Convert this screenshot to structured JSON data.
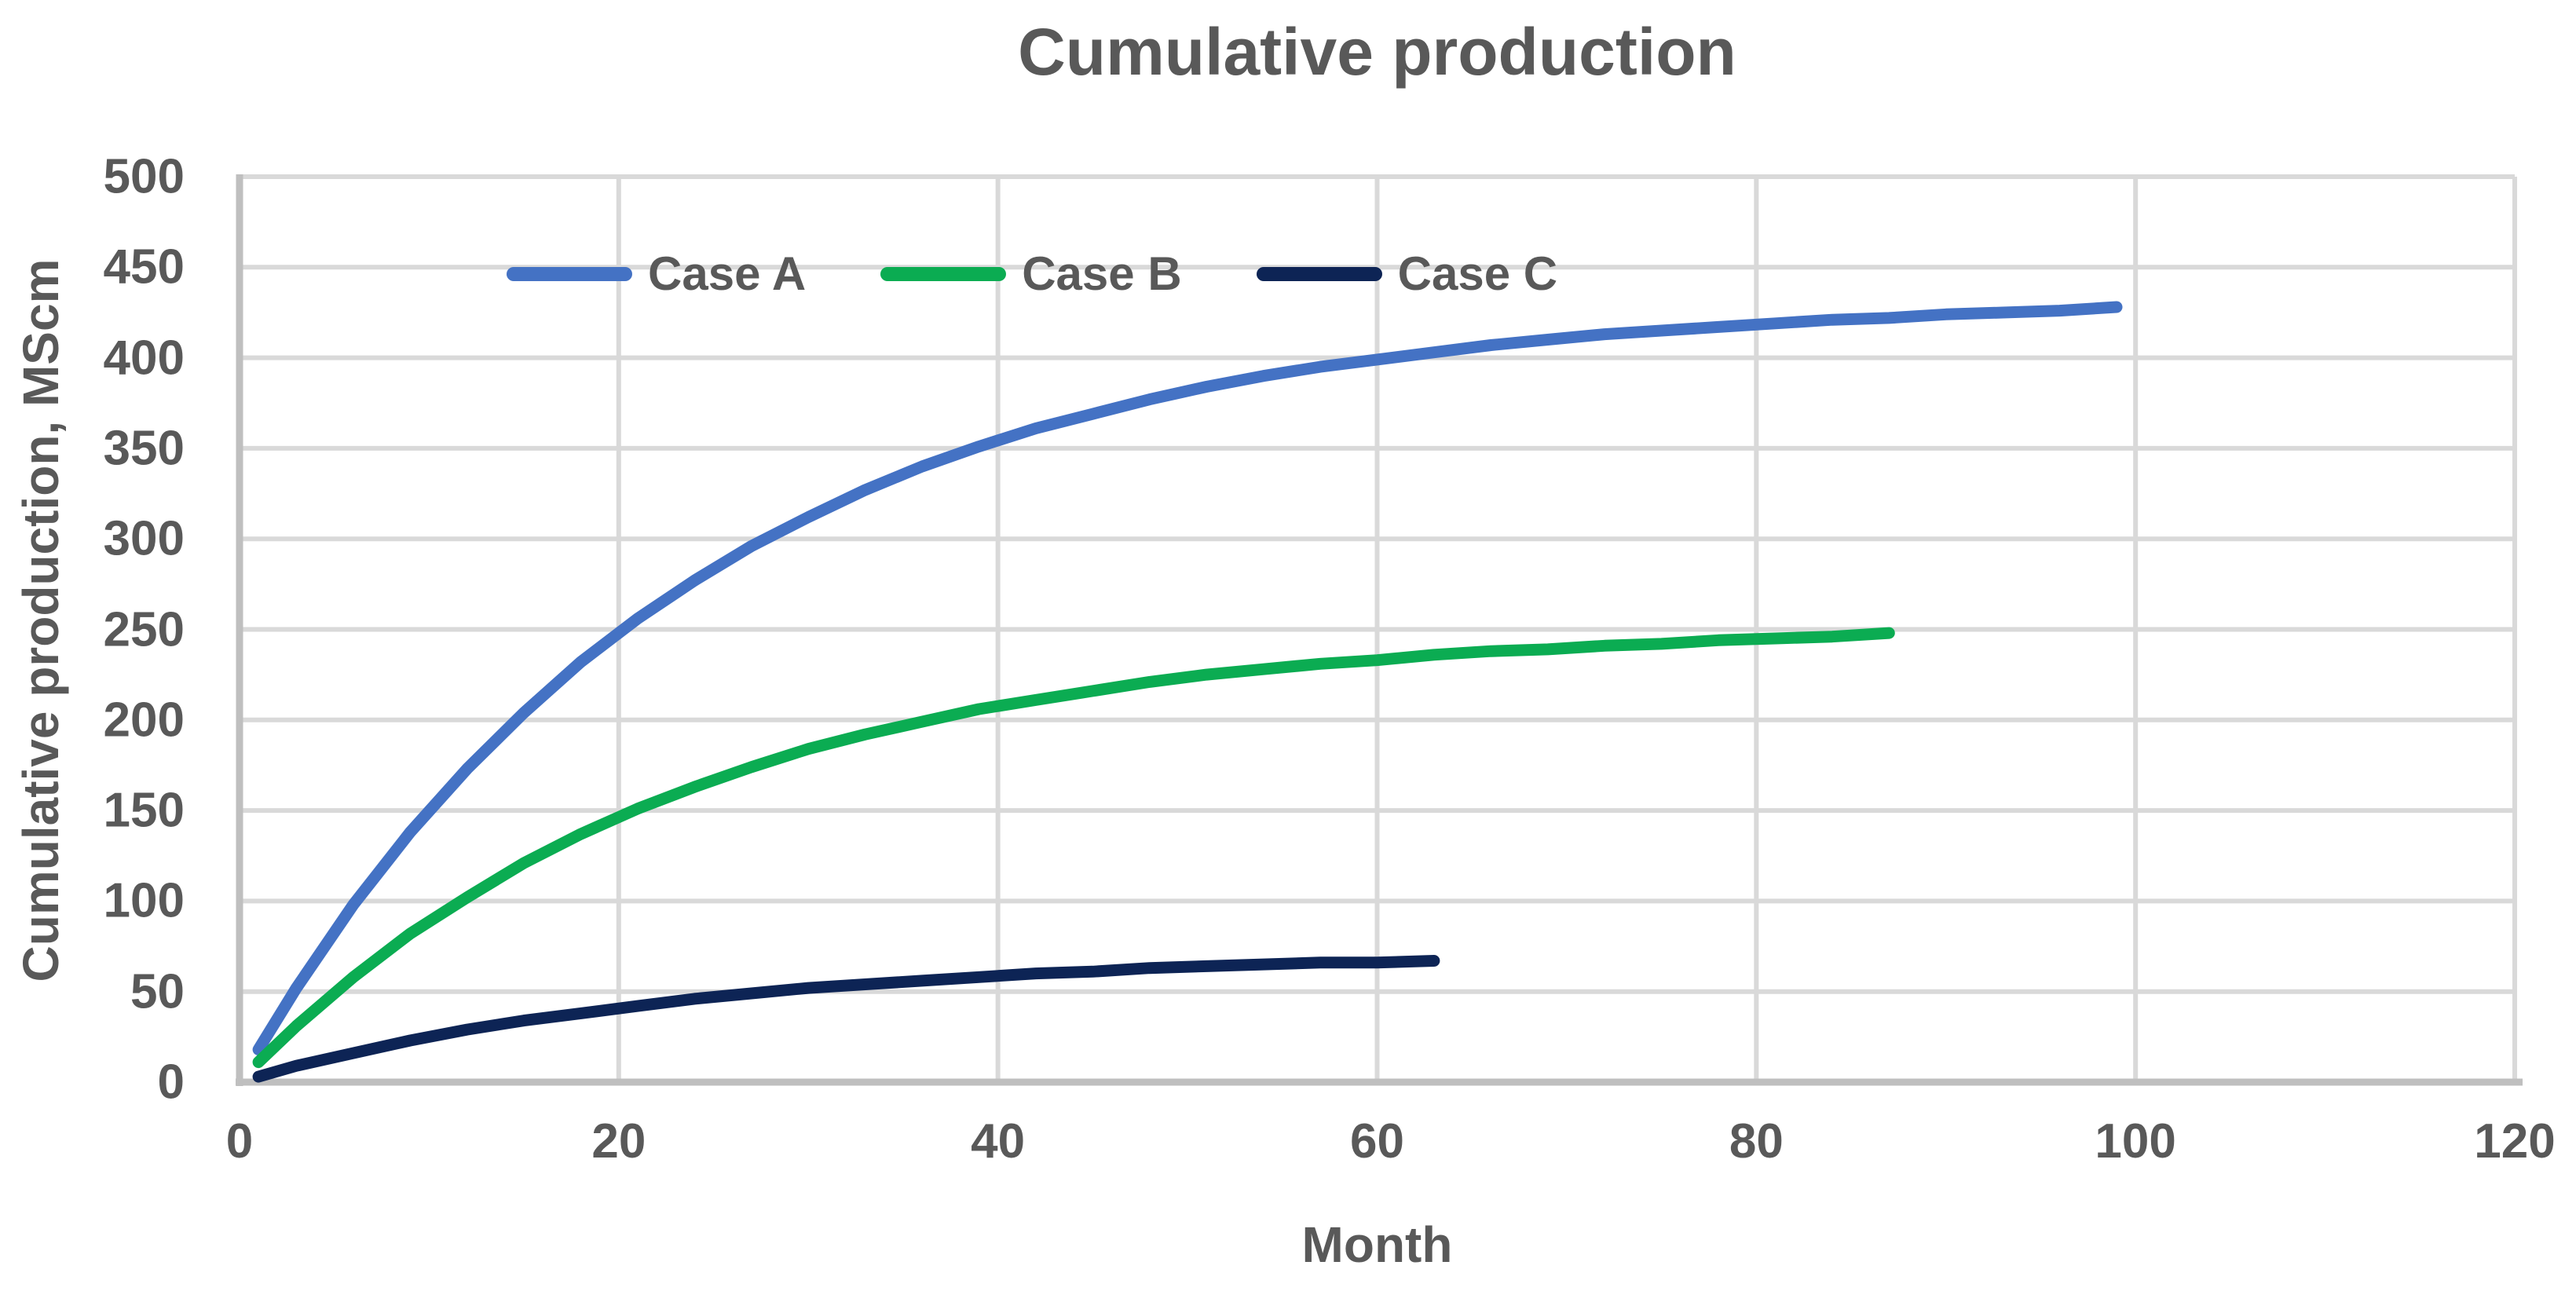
{
  "chart_data": {
    "type": "line",
    "title": "Cumulative production",
    "xlabel": "Month",
    "ylabel": "Cumulative production, MScm",
    "xlim": [
      0,
      120
    ],
    "ylim": [
      0,
      500
    ],
    "x_ticks": [
      0,
      20,
      40,
      60,
      80,
      100,
      120
    ],
    "y_ticks": [
      0,
      50,
      100,
      150,
      200,
      250,
      300,
      350,
      400,
      450,
      500
    ],
    "grid": true,
    "grid_color": "#D9D9D9",
    "axis_color": "#BFBFBF",
    "text_color": "#595959",
    "legend_position": "top-inside",
    "series": [
      {
        "name": "Case A",
        "color": "#4472C4",
        "points": [
          [
            1,
            18
          ],
          [
            3,
            52
          ],
          [
            6,
            98
          ],
          [
            9,
            138
          ],
          [
            12,
            173
          ],
          [
            15,
            204
          ],
          [
            18,
            232
          ],
          [
            21,
            256
          ],
          [
            24,
            277
          ],
          [
            27,
            296
          ],
          [
            30,
            312
          ],
          [
            33,
            327
          ],
          [
            36,
            340
          ],
          [
            39,
            351
          ],
          [
            42,
            361
          ],
          [
            45,
            369
          ],
          [
            48,
            377
          ],
          [
            51,
            384
          ],
          [
            54,
            390
          ],
          [
            57,
            395
          ],
          [
            60,
            399
          ],
          [
            63,
            403
          ],
          [
            66,
            407
          ],
          [
            69,
            410
          ],
          [
            72,
            413
          ],
          [
            75,
            415
          ],
          [
            78,
            417
          ],
          [
            81,
            419
          ],
          [
            84,
            421
          ],
          [
            87,
            422
          ],
          [
            90,
            424
          ],
          [
            93,
            425
          ],
          [
            96,
            426
          ],
          [
            99,
            428
          ]
        ]
      },
      {
        "name": "Case B",
        "color": "#0BAC52",
        "points": [
          [
            1,
            11
          ],
          [
            3,
            31
          ],
          [
            6,
            58
          ],
          [
            9,
            82
          ],
          [
            12,
            102
          ],
          [
            15,
            121
          ],
          [
            18,
            137
          ],
          [
            21,
            151
          ],
          [
            24,
            163
          ],
          [
            27,
            174
          ],
          [
            30,
            184
          ],
          [
            33,
            192
          ],
          [
            36,
            199
          ],
          [
            39,
            206
          ],
          [
            42,
            211
          ],
          [
            45,
            216
          ],
          [
            48,
            221
          ],
          [
            51,
            225
          ],
          [
            54,
            228
          ],
          [
            57,
            231
          ],
          [
            60,
            233
          ],
          [
            63,
            236
          ],
          [
            66,
            238
          ],
          [
            69,
            239
          ],
          [
            72,
            241
          ],
          [
            75,
            242
          ],
          [
            78,
            244
          ],
          [
            81,
            245
          ],
          [
            84,
            246
          ],
          [
            87,
            248
          ]
        ]
      },
      {
        "name": "Case C",
        "color": "#0D2455",
        "points": [
          [
            1,
            3
          ],
          [
            3,
            9
          ],
          [
            6,
            16
          ],
          [
            9,
            23
          ],
          [
            12,
            29
          ],
          [
            15,
            34
          ],
          [
            18,
            38
          ],
          [
            21,
            42
          ],
          [
            24,
            46
          ],
          [
            27,
            49
          ],
          [
            30,
            52
          ],
          [
            33,
            54
          ],
          [
            36,
            56
          ],
          [
            39,
            58
          ],
          [
            42,
            60
          ],
          [
            45,
            61
          ],
          [
            48,
            63
          ],
          [
            51,
            64
          ],
          [
            54,
            65
          ],
          [
            57,
            66
          ],
          [
            60,
            66
          ],
          [
            63,
            67
          ]
        ]
      }
    ]
  }
}
